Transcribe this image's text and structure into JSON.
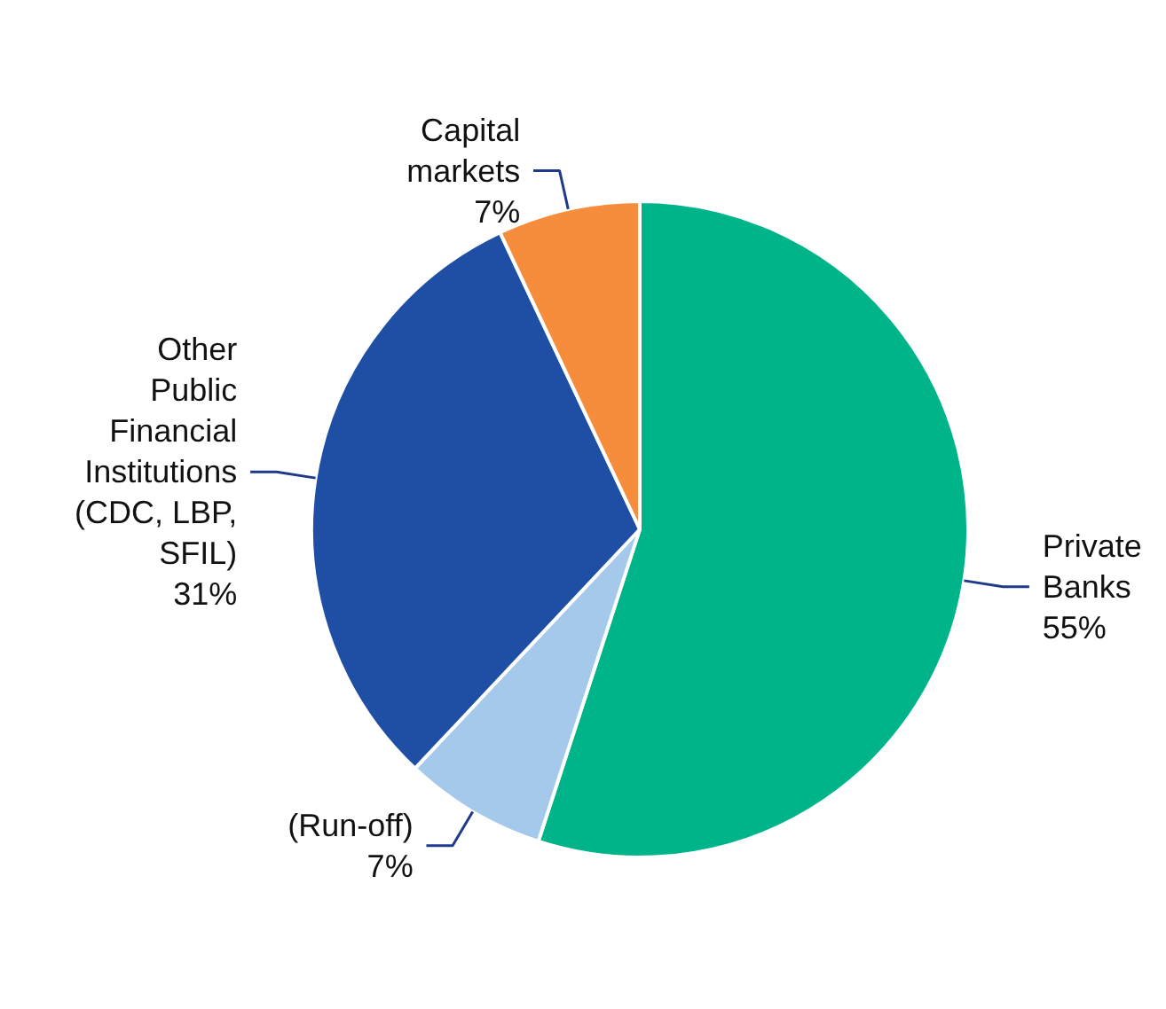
{
  "chart_data": {
    "type": "pie",
    "categories": [
      "Private Banks",
      "(Run-off)",
      "Other Public Financial Institutions (CDC, LBP, SFIL)",
      "Capital markets"
    ],
    "values": [
      55,
      7,
      31,
      7
    ],
    "value_labels": [
      "55%",
      "7%",
      "31%",
      "7%"
    ],
    "colors": [
      "#00b48a",
      "#a4c9eb",
      "#1f4fa5",
      "#f58d3d"
    ]
  }
}
